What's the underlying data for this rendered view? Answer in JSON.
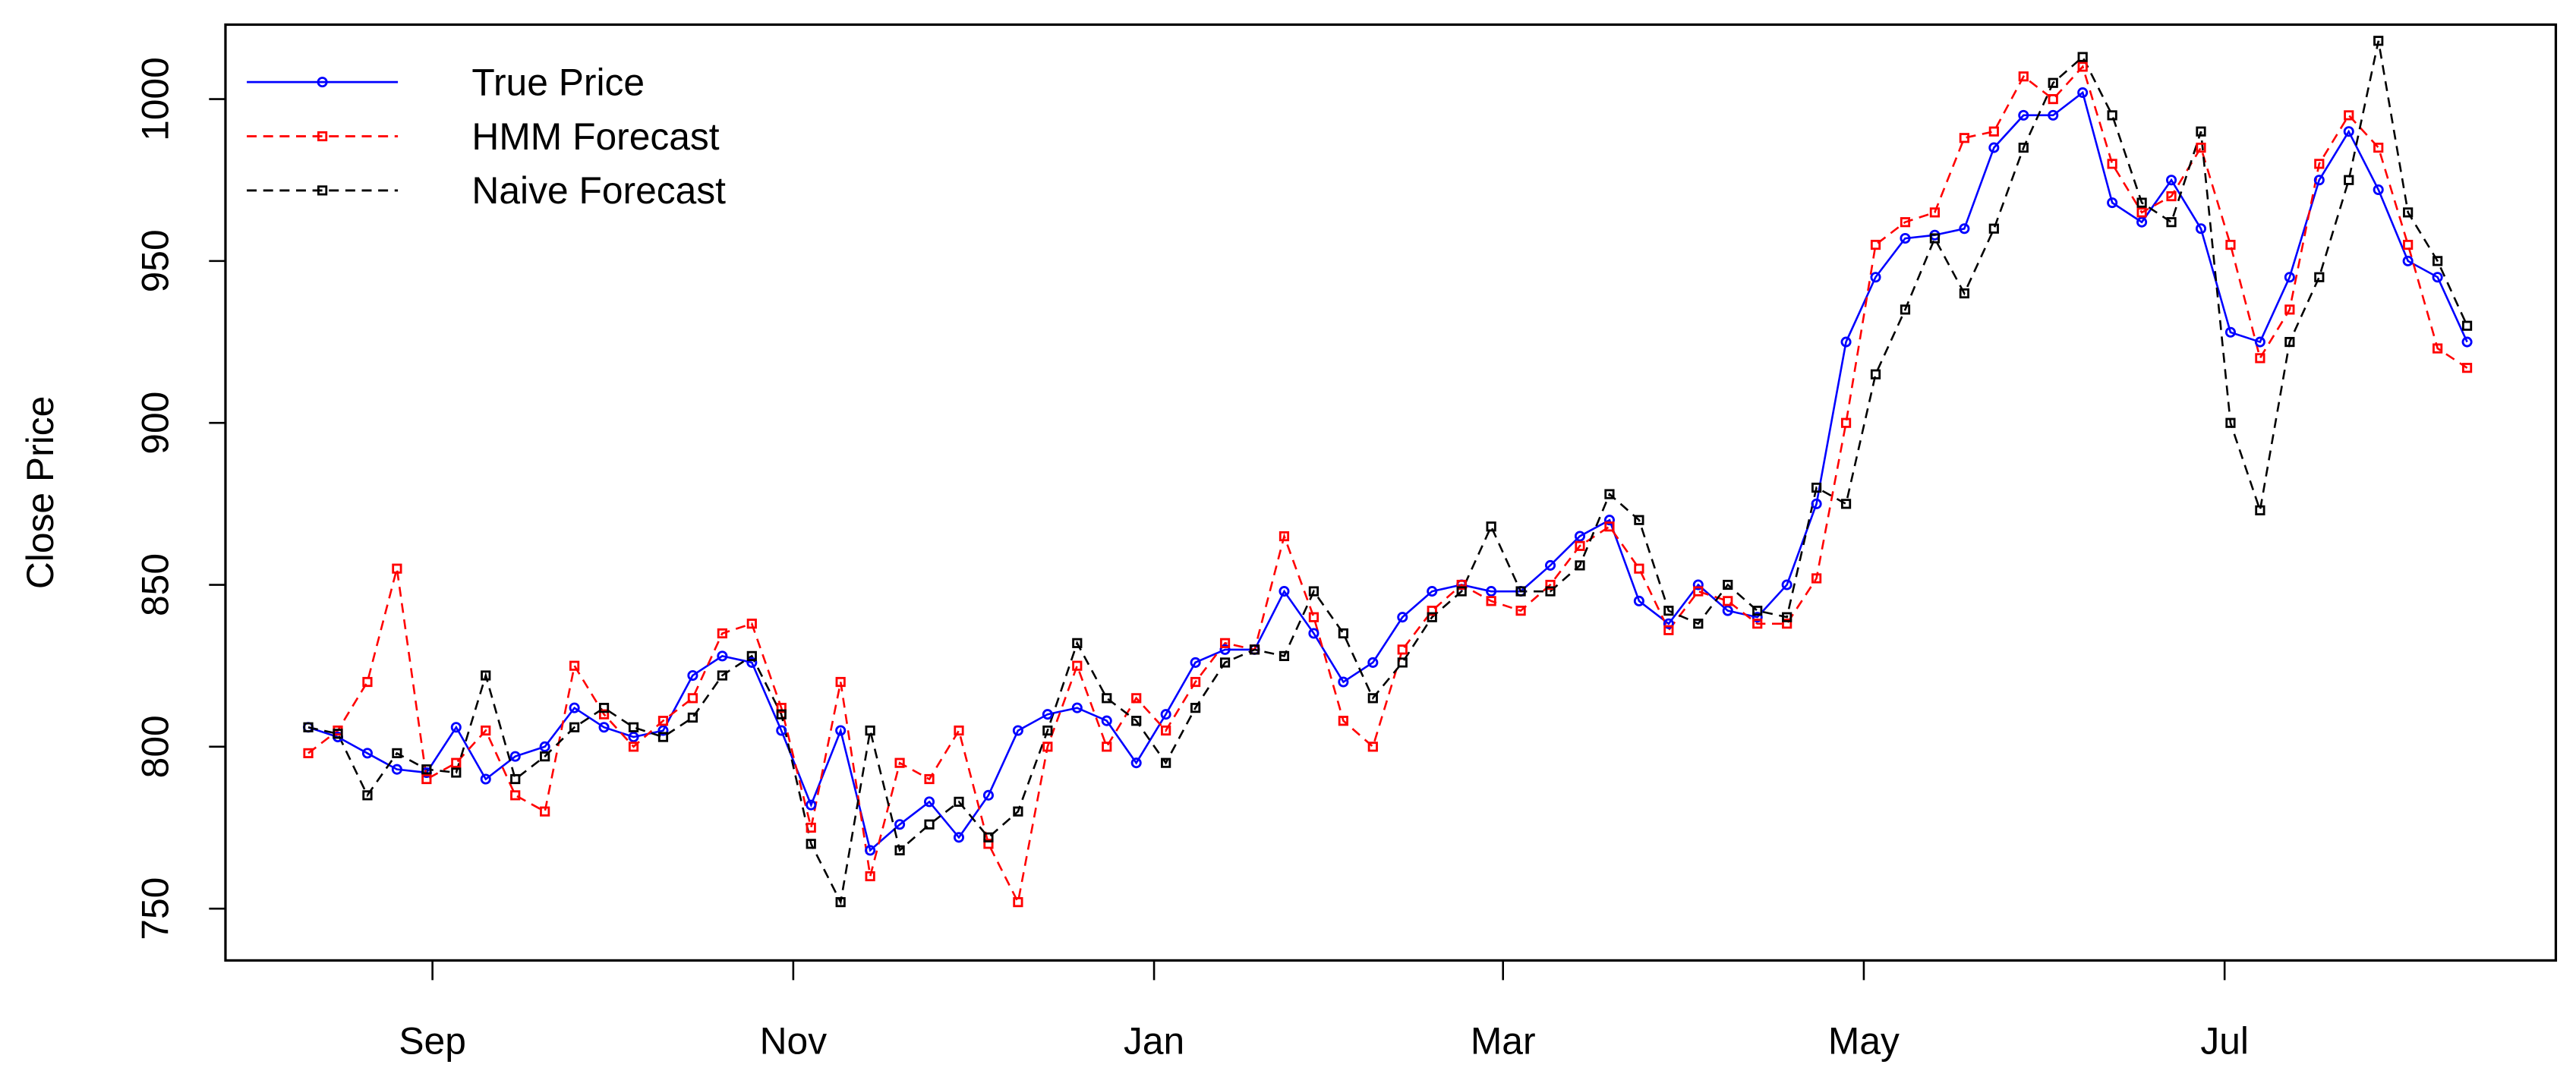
{
  "chart_data": {
    "type": "line",
    "ylabel": "Close Price",
    "x": [
      10,
      15,
      20,
      25,
      30,
      35,
      40,
      45,
      50,
      55,
      60,
      65,
      70,
      75,
      80,
      85,
      90,
      95,
      100,
      105,
      110,
      115,
      120,
      125,
      130,
      135,
      140,
      145,
      150,
      155,
      160,
      165,
      170,
      175,
      180,
      185,
      190,
      195,
      200,
      205,
      210,
      215,
      220,
      225,
      230,
      235,
      240,
      245,
      250,
      255,
      260,
      265,
      270,
      275,
      280,
      285,
      290,
      295,
      300,
      305,
      310,
      315,
      320,
      325,
      330,
      335,
      340,
      345,
      350,
      355,
      360,
      365,
      370,
      375
    ],
    "series": [
      {
        "name": "True Price",
        "color": "#0000ff",
        "line_style": "solid",
        "marker": "circle",
        "values": [
          806,
          803,
          798,
          793,
          792,
          806,
          790,
          797,
          800,
          812,
          806,
          803,
          805,
          822,
          828,
          826,
          805,
          782,
          805,
          768,
          776,
          783,
          772,
          785,
          805,
          810,
          812,
          808,
          795,
          810,
          826,
          830,
          830,
          848,
          835,
          820,
          826,
          840,
          848,
          850,
          848,
          848,
          856,
          865,
          870,
          845,
          838,
          850,
          842,
          840,
          850,
          875,
          925,
          945,
          957,
          958,
          960,
          985,
          995,
          995,
          1002,
          968,
          962,
          975,
          960,
          928,
          925,
          945,
          975,
          990,
          972,
          950,
          945,
          925
        ]
      },
      {
        "name": "HMM Forecast",
        "color": "#ff0000",
        "line_style": "dashed",
        "marker": "square",
        "values": [
          798,
          805,
          820,
          855,
          790,
          795,
          805,
          785,
          780,
          825,
          810,
          800,
          808,
          815,
          835,
          838,
          812,
          775,
          820,
          760,
          795,
          790,
          805,
          770,
          752,
          800,
          825,
          800,
          815,
          805,
          820,
          832,
          830,
          865,
          840,
          808,
          800,
          830,
          842,
          850,
          845,
          842,
          850,
          862,
          868,
          855,
          836,
          848,
          845,
          838,
          838,
          852,
          900,
          955,
          962,
          965,
          988,
          990,
          1007,
          1000,
          1010,
          980,
          965,
          970,
          985,
          955,
          920,
          935,
          980,
          995,
          985,
          955,
          923,
          917
        ]
      },
      {
        "name": "Naive Forecast",
        "color": "#000000",
        "line_style": "dashed",
        "marker": "square",
        "values": [
          806,
          804,
          785,
          798,
          793,
          792,
          822,
          790,
          797,
          806,
          812,
          806,
          803,
          809,
          822,
          828,
          810,
          770,
          752,
          805,
          768,
          776,
          783,
          772,
          780,
          805,
          832,
          815,
          808,
          795,
          812,
          826,
          830,
          828,
          848,
          835,
          815,
          826,
          840,
          848,
          868,
          848,
          848,
          856,
          878,
          870,
          842,
          838,
          850,
          842,
          840,
          880,
          875,
          915,
          935,
          957,
          940,
          960,
          985,
          1005,
          1013,
          995,
          968,
          962,
          990,
          900,
          873,
          925,
          945,
          975,
          1018,
          965,
          950,
          930
        ]
      }
    ],
    "xlim": [
      -4,
      390
    ],
    "xticks": [
      {
        "value": 31,
        "label": "Sep"
      },
      {
        "value": 92,
        "label": "Nov"
      },
      {
        "value": 153,
        "label": "Jan"
      },
      {
        "value": 212,
        "label": "Mar"
      },
      {
        "value": 273,
        "label": "May"
      },
      {
        "value": 334,
        "label": "Jul"
      }
    ],
    "ylim": [
      734,
      1023
    ],
    "yticks": [
      750,
      800,
      850,
      900,
      950,
      1000
    ],
    "legend": "top-left"
  }
}
